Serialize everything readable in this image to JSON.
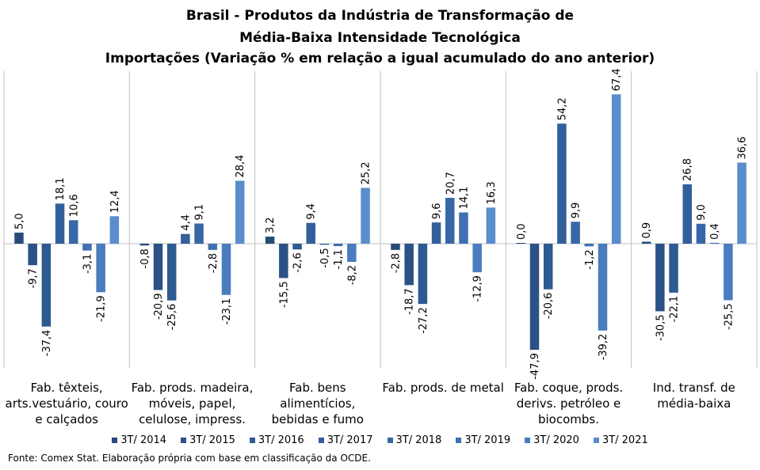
{
  "chart_data": {
    "type": "bar",
    "title": [
      "Brasil - Produtos da Indústria de Transformação de",
      "Média-Baixa Intensidade Tecnológica",
      "Importações (Variação % em relação a igual acumulado do ano anterior)"
    ],
    "categories": [
      [
        "Fab. têxteis,",
        "arts.vestuário, couro",
        "e calçados"
      ],
      [
        "Fab. prods. madeira,",
        "móveis, papel,",
        "celulose, impress."
      ],
      [
        "Fab. bens",
        "alimentícios,",
        "bebidas e fumo"
      ],
      [
        "Fab. prods. de metal"
      ],
      [
        "Fab. coque, prods.",
        "derivs. petróleo e",
        "biocombs."
      ],
      [
        "Ind. transf. de",
        "média-baixa"
      ]
    ],
    "series": [
      {
        "name": "3T/ 2014",
        "color": "#264b78",
        "values": [
          5.0,
          -0.8,
          3.2,
          -2.8,
          0.0,
          0.9
        ],
        "labels": [
          "5,0",
          "-0,8",
          "3,2",
          "-2,8",
          "0,0",
          "0,9"
        ]
      },
      {
        "name": "3T/ 2015",
        "color": "#2a5286",
        "values": [
          -9.7,
          -20.9,
          -15.5,
          -18.7,
          -47.9,
          -30.5
        ],
        "labels": [
          "-9,7",
          "-20,9",
          "-15,5",
          "-18,7",
          "-47,9",
          "-30,5"
        ]
      },
      {
        "name": "3T/ 2016",
        "color": "#2d5a90",
        "values": [
          -37.4,
          -25.6,
          -2.6,
          -27.2,
          -20.6,
          -22.1
        ],
        "labels": [
          "-37,4",
          "-25,6",
          "-2,6",
          "-27,2",
          "-20,6",
          "-22,1"
        ]
      },
      {
        "name": "3T/ 2017",
        "color": "#315f9b",
        "values": [
          18.1,
          4.4,
          9.4,
          9.6,
          54.2,
          26.8
        ],
        "labels": [
          "18,1",
          "4,4",
          "9,4",
          "9,6",
          "54,2",
          "26,8"
        ]
      },
      {
        "name": "3T/ 2018",
        "color": "#3767a6",
        "values": [
          10.6,
          9.1,
          -0.5,
          20.7,
          9.9,
          9.0
        ],
        "labels": [
          "10,6",
          "9,1",
          "-0,5",
          "20,7",
          "9,9",
          "9,0"
        ]
      },
      {
        "name": "3T/ 2019",
        "color": "#4070b0",
        "values": [
          -3.1,
          -2.8,
          -1.1,
          14.1,
          -1.2,
          0.4
        ],
        "labels": [
          "-3,1",
          "-2,8",
          "-1,1",
          "14,1",
          "-1,2",
          "0,4"
        ]
      },
      {
        "name": "3T/ 2020",
        "color": "#4a7cbe",
        "values": [
          -21.9,
          -23.1,
          -8.2,
          -12.9,
          -39.2,
          -25.5
        ],
        "labels": [
          "-21,9",
          "-23,1",
          "-8,2",
          "-12,9",
          "-39,2",
          "-25,5"
        ]
      },
      {
        "name": "3T/ 2021",
        "color": "#5b8ccd",
        "values": [
          12.4,
          28.4,
          25.2,
          16.3,
          67.4,
          36.6
        ],
        "labels": [
          "12,4",
          "28,4",
          "25,2",
          "16,3",
          "67,4",
          "36,6"
        ]
      }
    ],
    "ylim": [
      -55,
      70
    ],
    "grid": false,
    "legend_position": "bottom",
    "source": "Fonte: Comex Stat. Elaboração própria com base em classificação da OCDE."
  }
}
